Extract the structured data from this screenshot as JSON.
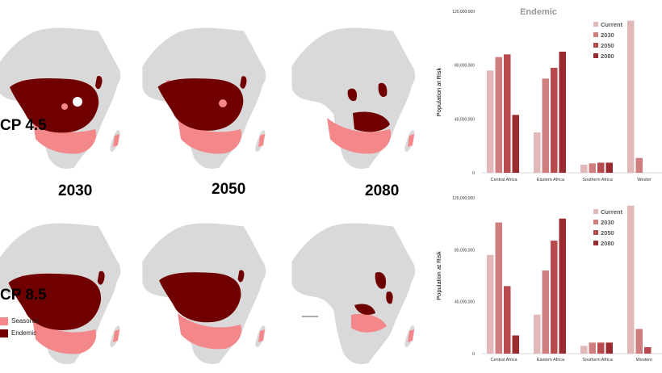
{
  "maps": {
    "scenarios": [
      "CP 4.5",
      "CP 8.5"
    ],
    "years": [
      "2030",
      "2050",
      "2080"
    ],
    "legend": [
      {
        "label": "Seasonal",
        "color": "#f4878a"
      },
      {
        "label": "Endemic",
        "color": "#700000"
      }
    ],
    "land_color": "#d9d9d9"
  },
  "chart_data": [
    {
      "type": "bar",
      "title": "Endemic",
      "ylabel": "Population at Risk",
      "ylim": [
        0,
        120000000
      ],
      "yticks": [
        "0",
        "40,000,000",
        "80,000,000",
        "120,000,000"
      ],
      "categories": [
        "Central Africa",
        "Eastern Africa",
        "Southern Africa",
        "Western Africa"
      ],
      "category_labels": [
        "Central Africa",
        "Eastern Africa",
        "Southern Africa",
        "Wester"
      ],
      "series": [
        {
          "name": "Current",
          "color": "#e2b7b7",
          "values": [
            76000000,
            30000000,
            6000000,
            113000000
          ]
        },
        {
          "name": "2030",
          "color": "#cf7d7f",
          "values": [
            86000000,
            70000000,
            7000000,
            11000000
          ]
        },
        {
          "name": "2050",
          "color": "#b84a4d",
          "values": [
            88000000,
            78000000,
            7500000,
            0
          ]
        },
        {
          "name": "2080",
          "color": "#9a2a30",
          "values": [
            43000000,
            90000000,
            7500000,
            0
          ]
        }
      ],
      "legend_position": "top-right"
    },
    {
      "type": "bar",
      "title": "",
      "ylabel": "Population at Risk",
      "ylim": [
        0,
        120000000
      ],
      "yticks": [
        "0",
        "40,000,000",
        "80,000,000",
        "120,000,000"
      ],
      "categories": [
        "Central Africa",
        "Eastern Africa",
        "Southern Africa",
        "Western Africa"
      ],
      "category_labels": [
        "Central Africa",
        "Eastern Africa",
        "Southern Africa",
        "Western"
      ],
      "series": [
        {
          "name": "Current",
          "color": "#e2b7b7",
          "values": [
            76000000,
            30000000,
            6000000,
            114000000
          ]
        },
        {
          "name": "2030",
          "color": "#cf7d7f",
          "values": [
            101000000,
            64000000,
            8500000,
            19000000
          ]
        },
        {
          "name": "2050",
          "color": "#b84a4d",
          "values": [
            52000000,
            87000000,
            8500000,
            5000000
          ]
        },
        {
          "name": "2080",
          "color": "#9a2a30",
          "values": [
            14000000,
            104000000,
            8500000,
            0
          ]
        }
      ],
      "legend_position": "top-right"
    }
  ]
}
